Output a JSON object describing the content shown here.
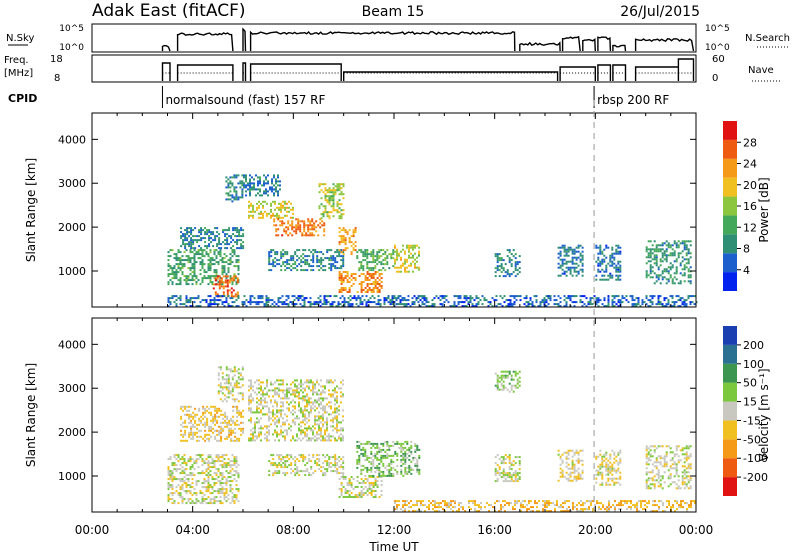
{
  "header": {
    "station": "Adak East (fitACF)",
    "beam": "Beam 15",
    "date": "26/Jul/2015"
  },
  "panels": {
    "nsky": {
      "left_label": "N.Sky",
      "right_label": "N.Search",
      "left_ticks": [
        "10^5",
        "10^0"
      ],
      "right_ticks": [
        "10^5",
        "10^0"
      ]
    },
    "freq": {
      "left_label_1": "Freq.",
      "left_label_2": "[MHz]",
      "right_label": "Nave",
      "left_ticks": [
        "18",
        "8"
      ],
      "right_ticks": [
        "60",
        "0"
      ]
    },
    "cpid": {
      "label": "CPID",
      "segments": [
        {
          "text": "normalsound (fast) 157 RF",
          "start_hour": 2.8
        },
        {
          "text": "rbsp 200 RF",
          "start_hour": 19.95
        }
      ]
    }
  },
  "colors": {
    "power": [
      "#0022ee",
      "#1a5fcc",
      "#2f8f74",
      "#44a85a",
      "#8cc63f",
      "#f0c020",
      "#f59a18",
      "#ee5a10",
      "#e01212"
    ],
    "velocity": [
      "#e01212",
      "#ee5a10",
      "#f59a18",
      "#f0c020",
      "#c8c8c0",
      "#7cc83c",
      "#3c9650",
      "#2a7090",
      "#1a3fb0"
    ]
  },
  "chart_data": [
    {
      "type": "heatmap",
      "name": "power",
      "xlabel": "",
      "ylabel": "Slant Range [km]",
      "xlim": [
        0,
        24
      ],
      "ylim": [
        180,
        4600
      ],
      "yticks": [
        1000,
        2000,
        3000,
        4000
      ],
      "colorbar": {
        "label": "Power [dB]",
        "min": 0,
        "max": 32,
        "ticks": [
          "4",
          "8",
          "12",
          "16",
          "20",
          "24",
          "28"
        ]
      },
      "echo_regions": [
        {
          "x": [
            3.0,
            5.8
          ],
          "y": [
            700,
            1500
          ],
          "value": 11
        },
        {
          "x": [
            4.8,
            5.8
          ],
          "y": [
            400,
            900
          ],
          "value": 26
        },
        {
          "x": [
            3.5,
            6.0
          ],
          "y": [
            1500,
            2000
          ],
          "value": 8
        },
        {
          "x": [
            5.3,
            6.0
          ],
          "y": [
            2600,
            3200
          ],
          "value": 8
        },
        {
          "x": [
            6.2,
            8.0
          ],
          "y": [
            2200,
            2600
          ],
          "value": 18
        },
        {
          "x": [
            7.2,
            9.2
          ],
          "y": [
            1800,
            2200
          ],
          "value": 25
        },
        {
          "x": [
            9.0,
            10.0
          ],
          "y": [
            2200,
            3000
          ],
          "value": 17
        },
        {
          "x": [
            6.0,
            7.5
          ],
          "y": [
            2700,
            3200
          ],
          "value": 8
        },
        {
          "x": [
            7.0,
            10.0
          ],
          "y": [
            1000,
            1500
          ],
          "value": 8
        },
        {
          "x": [
            9.8,
            10.5
          ],
          "y": [
            1400,
            2000
          ],
          "value": 22
        },
        {
          "x": [
            9.8,
            11.5
          ],
          "y": [
            500,
            1000
          ],
          "value": 24
        },
        {
          "x": [
            10.5,
            12.0
          ],
          "y": [
            1000,
            1500
          ],
          "value": 13
        },
        {
          "x": [
            12.0,
            13.0
          ],
          "y": [
            1000,
            1600
          ],
          "value": 18
        },
        {
          "x": [
            16.0,
            17.0
          ],
          "y": [
            900,
            1500
          ],
          "value": 8
        },
        {
          "x": [
            18.5,
            19.5
          ],
          "y": [
            900,
            1600
          ],
          "value": 7
        },
        {
          "x": [
            20.0,
            21.0
          ],
          "y": [
            800,
            1600
          ],
          "value": 7
        },
        {
          "x": [
            22.0,
            23.8
          ],
          "y": [
            700,
            1700
          ],
          "value": 10
        },
        {
          "x": [
            3.0,
            24.0
          ],
          "y": [
            200,
            450
          ],
          "value": 6
        }
      ]
    },
    {
      "type": "heatmap",
      "name": "velocity",
      "xlabel": "Time UT",
      "ylabel": "Slant Range [km]",
      "xlim": [
        0,
        24
      ],
      "ylim": [
        180,
        4600
      ],
      "yticks": [
        1000,
        2000,
        3000,
        4000
      ],
      "xticks": [
        "00:00",
        "04:00",
        "08:00",
        "12:00",
        "16:00",
        "20:00",
        "00:00"
      ],
      "colorbar": {
        "label": "Velocity [m s⁻¹]",
        "min": -250,
        "max": 250,
        "ticks": [
          "200",
          "100",
          "50",
          "15",
          "-15",
          "-50",
          "-100",
          "-200"
        ]
      },
      "echo_regions": [
        {
          "x": [
            3.0,
            5.8
          ],
          "y": [
            400,
            1500
          ],
          "value": 0
        },
        {
          "x": [
            5.0,
            6.0
          ],
          "y": [
            2700,
            3500
          ],
          "value": 0
        },
        {
          "x": [
            6.2,
            10.0
          ],
          "y": [
            1800,
            3200
          ],
          "value": 0
        },
        {
          "x": [
            3.5,
            6.0
          ],
          "y": [
            1800,
            2600
          ],
          "value": -40
        },
        {
          "x": [
            7.0,
            10.0
          ],
          "y": [
            1000,
            1500
          ],
          "value": 0
        },
        {
          "x": [
            9.8,
            11.5
          ],
          "y": [
            500,
            1000
          ],
          "value": 0
        },
        {
          "x": [
            10.5,
            13.0
          ],
          "y": [
            1000,
            1800
          ],
          "value": 60
        },
        {
          "x": [
            16.0,
            17.0
          ],
          "y": [
            2900,
            3400
          ],
          "value": 40
        },
        {
          "x": [
            16.0,
            17.0
          ],
          "y": [
            900,
            1500
          ],
          "value": 0
        },
        {
          "x": [
            18.5,
            19.5
          ],
          "y": [
            900,
            1600
          ],
          "value": -30
        },
        {
          "x": [
            20.0,
            21.0
          ],
          "y": [
            800,
            1600
          ],
          "value": -20
        },
        {
          "x": [
            22.0,
            23.8
          ],
          "y": [
            700,
            1700
          ],
          "value": 0
        },
        {
          "x": [
            12.0,
            24.0
          ],
          "y": [
            200,
            450
          ],
          "value": -60
        }
      ]
    }
  ]
}
